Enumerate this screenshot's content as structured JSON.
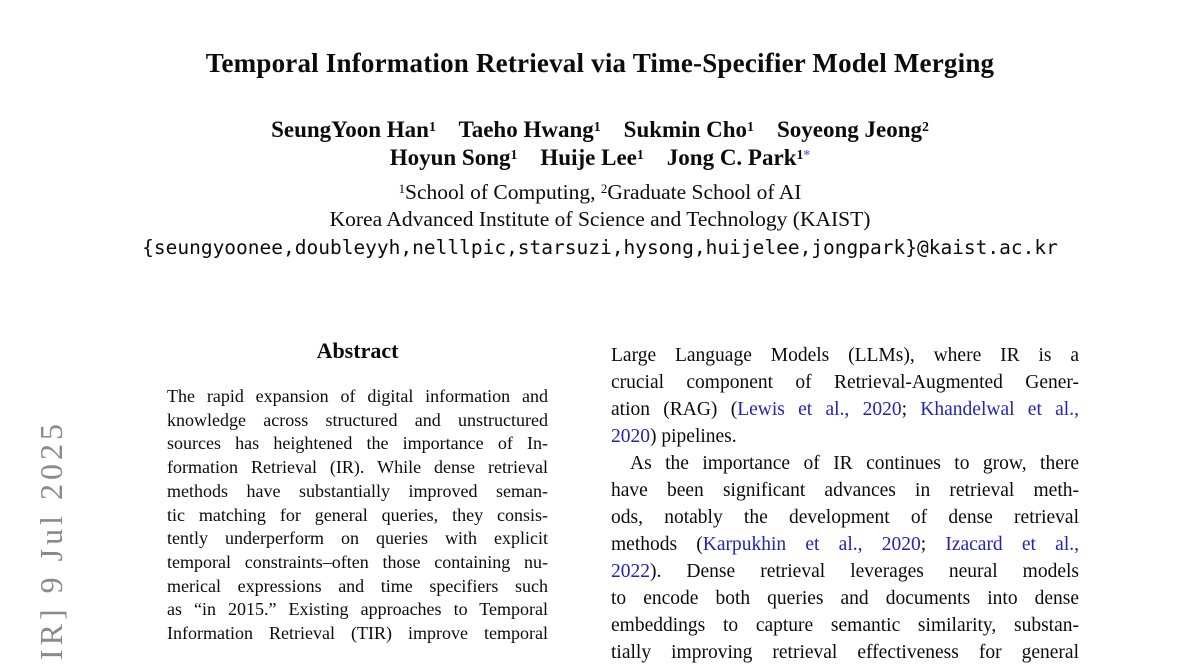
{
  "colors": {
    "text": "#0b0b0b",
    "citation": "#2323b4",
    "footnote_star": "#6f6fdc",
    "watermark": "#8a8a8a"
  },
  "watermark": {
    "text": "IR] 9 Jul 2025"
  },
  "header": {
    "title": "Temporal Information Retrieval via Time-Specifier Model Merging",
    "authors_line1": [
      {
        "t": "SeungYoon Han"
      },
      {
        "t": "1",
        "c": "sup"
      },
      {
        "t": "    "
      },
      {
        "t": "Taeho Hwang"
      },
      {
        "t": "1",
        "c": "sup"
      },
      {
        "t": "    "
      },
      {
        "t": "Sukmin Cho"
      },
      {
        "t": "1",
        "c": "sup"
      },
      {
        "t": "    "
      },
      {
        "t": "Soyeong Jeong"
      },
      {
        "t": "2",
        "c": "sup"
      }
    ],
    "authors_line2": [
      {
        "t": "Hoyun Song"
      },
      {
        "t": "1",
        "c": "sup"
      },
      {
        "t": "    "
      },
      {
        "t": "Huije Lee"
      },
      {
        "t": "1",
        "c": "sup"
      },
      {
        "t": "    "
      },
      {
        "t": "Jong C. Park"
      },
      {
        "t": "1",
        "c": "sup"
      },
      {
        "t": "*",
        "c": "sup star"
      }
    ],
    "affiliation_line1": [
      {
        "t": "1",
        "c": "sup"
      },
      {
        "t": "School of Computing, "
      },
      {
        "t": "2",
        "c": "sup"
      },
      {
        "t": "Graduate School of AI"
      }
    ],
    "affiliation_line2": "Korea Advanced Institute of Science and Technology (KAIST)",
    "email": "{seungyoonee,doubleyyh,nelllpic,starsuzi,hysong,huijelee,jongpark}@kaist.ac.kr"
  },
  "abstract": {
    "heading": "Abstract",
    "lines": [
      {
        "j": 1,
        "seg": [
          {
            "t": "The rapid expansion of digital information and"
          }
        ]
      },
      {
        "j": 1,
        "seg": [
          {
            "t": "knowledge across structured and unstructured"
          }
        ]
      },
      {
        "j": 1,
        "seg": [
          {
            "t": "sources has heightened the importance of In-"
          }
        ]
      },
      {
        "j": 1,
        "seg": [
          {
            "t": "formation Retrieval (IR). While dense retrieval"
          }
        ]
      },
      {
        "j": 1,
        "seg": [
          {
            "t": "methods have substantially improved seman-"
          }
        ]
      },
      {
        "j": 1,
        "seg": [
          {
            "t": "tic matching for general queries, they consis-"
          }
        ]
      },
      {
        "j": 1,
        "seg": [
          {
            "t": "tently underperform on queries with explicit"
          }
        ]
      },
      {
        "j": 1,
        "seg": [
          {
            "t": "temporal constraints–often those containing nu-"
          }
        ]
      },
      {
        "j": 1,
        "seg": [
          {
            "t": "merical expressions and time specifiers such"
          }
        ]
      },
      {
        "j": 1,
        "seg": [
          {
            "t": "as “in 2015.” Existing approaches to Temporal"
          }
        ]
      },
      {
        "j": 1,
        "seg": [
          {
            "t": "Information Retrieval (TIR) improve temporal"
          }
        ]
      }
    ]
  },
  "right_column": {
    "lines": [
      {
        "j": 1,
        "seg": [
          {
            "t": "Large Language Models (LLMs), where IR is a"
          }
        ]
      },
      {
        "j": 1,
        "seg": [
          {
            "t": "crucial component of Retrieval-Augmented Gener-"
          }
        ]
      },
      {
        "j": 1,
        "seg": [
          {
            "t": "ation (RAG) ("
          },
          {
            "t": "Lewis et al., 2020",
            "c": "cite"
          },
          {
            "t": "; "
          },
          {
            "t": "Khandelwal et al.,",
            "c": "cite"
          }
        ]
      },
      {
        "j": 0,
        "seg": [
          {
            "t": "2020",
            "c": "cite"
          },
          {
            "t": ") pipelines."
          }
        ]
      },
      {
        "j": 1,
        "ind": 1,
        "seg": [
          {
            "t": "As the importance of IR continues to grow, there"
          }
        ]
      },
      {
        "j": 1,
        "seg": [
          {
            "t": "have been significant advances in retrieval meth-"
          }
        ]
      },
      {
        "j": 1,
        "seg": [
          {
            "t": "ods, notably the development of dense retrieval"
          }
        ]
      },
      {
        "j": 1,
        "seg": [
          {
            "t": "methods ("
          },
          {
            "t": "Karpukhin et al., 2020",
            "c": "cite"
          },
          {
            "t": "; "
          },
          {
            "t": "Izacard et al.,",
            "c": "cite"
          }
        ]
      },
      {
        "j": 1,
        "seg": [
          {
            "t": "2022",
            "c": "cite"
          },
          {
            "t": ").  Dense retrieval leverages neural models"
          }
        ]
      },
      {
        "j": 1,
        "seg": [
          {
            "t": "to encode both queries and documents into dense"
          }
        ]
      },
      {
        "j": 1,
        "seg": [
          {
            "t": "embeddings to capture semantic similarity, substan-"
          }
        ]
      },
      {
        "j": 1,
        "cut": 1,
        "seg": [
          {
            "t": "tially improving retrieval effectiveness for general"
          }
        ]
      }
    ]
  }
}
